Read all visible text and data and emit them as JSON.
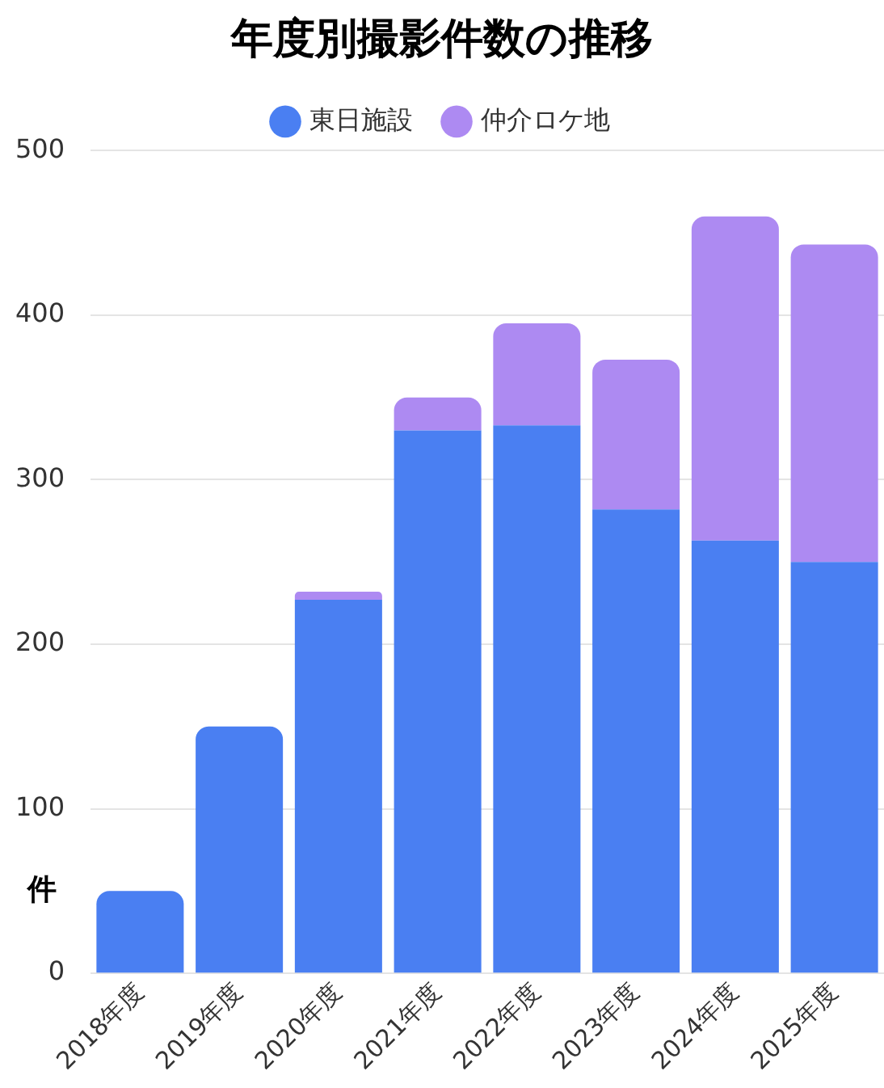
{
  "chart_data": {
    "type": "bar",
    "title": "年度別撮影件数の推移",
    "ylabel": "件",
    "categories": [
      "2018年度",
      "2019年度",
      "2020年度",
      "2021年度",
      "2022年度",
      "2023年度",
      "2024年度",
      "2025年度"
    ],
    "series": [
      {
        "name": "東日施設",
        "color": "#4a7ff2",
        "values": [
          50,
          150,
          227,
          330,
          333,
          282,
          263,
          250
        ]
      },
      {
        "name": "仲介ロケ地",
        "color": "#ad8af2",
        "values": [
          0,
          0,
          5,
          20,
          62,
          91,
          197,
          193
        ]
      }
    ],
    "stacked": true,
    "ylim": [
      0,
      500
    ],
    "yticks": [
      0,
      100,
      200,
      300,
      400,
      500
    ],
    "grid": "y",
    "legend": "top"
  }
}
